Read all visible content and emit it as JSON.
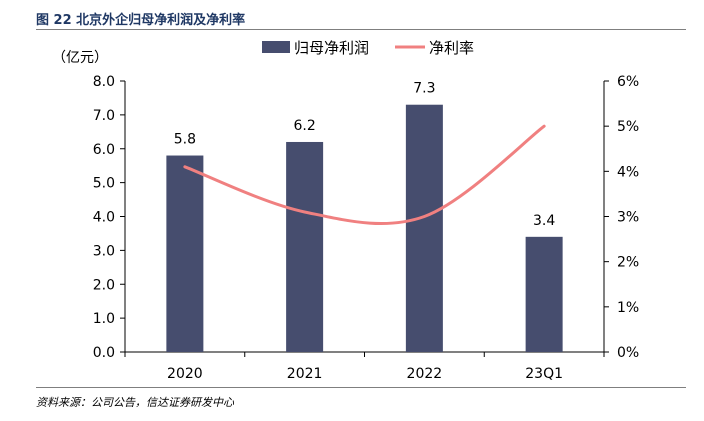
{
  "header": {
    "title": "图 22  北京外企归母净利润及净利率"
  },
  "footer": {
    "source": "资料来源：公司公告，信达证券研发中心"
  },
  "colors": {
    "bar": "#464d6e",
    "line": "#f08080",
    "title": "#1f3864",
    "axis": "#000000"
  },
  "chart_data": {
    "type": "bar+line",
    "title": "北京外企归母净利润及净利率",
    "unit_label": "（亿元）",
    "categories": [
      "2020",
      "2021",
      "2022",
      "23Q1"
    ],
    "series": [
      {
        "name": "归母净利润",
        "type": "bar",
        "axis": "left",
        "values": [
          5.8,
          6.2,
          7.3,
          3.4
        ],
        "labels": [
          "5.8",
          "6.2",
          "7.3",
          "3.4"
        ]
      },
      {
        "name": "净利率",
        "type": "line",
        "axis": "right",
        "values": [
          4.1,
          3.1,
          3.0,
          5.0
        ]
      }
    ],
    "left_axis": {
      "min": 0,
      "max": 8,
      "ticks": [
        "0.0",
        "1.0",
        "2.0",
        "3.0",
        "4.0",
        "5.0",
        "6.0",
        "7.0",
        "8.0"
      ]
    },
    "right_axis": {
      "min": 0,
      "max": 6,
      "ticks": [
        "0%",
        "1%",
        "2%",
        "3%",
        "4%",
        "5%",
        "6%"
      ]
    },
    "legend": {
      "position": "top",
      "entries": [
        "归母净利润",
        "净利率"
      ]
    }
  }
}
